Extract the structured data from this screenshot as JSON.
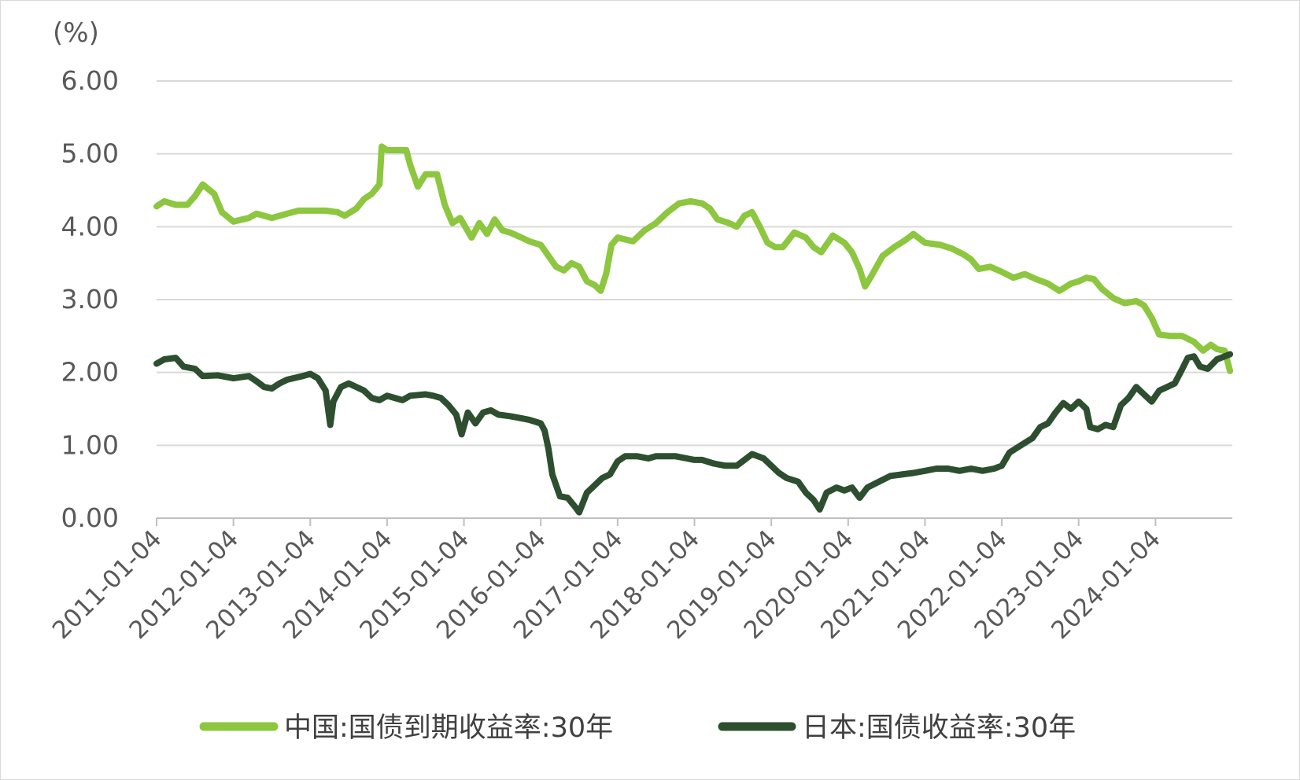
{
  "chart_data": {
    "type": "line",
    "title": "",
    "unit_label": "(%)",
    "xlabel": "",
    "ylabel": "",
    "ylim": [
      0,
      6
    ],
    "yticks": [
      "0.00",
      "1.00",
      "2.00",
      "3.00",
      "4.00",
      "5.00",
      "6.00"
    ],
    "xtick_labels": [
      "2011-01-04",
      "2012-01-04",
      "2013-01-04",
      "2014-01-04",
      "2015-01-04",
      "2016-01-04",
      "2017-01-04",
      "2018-01-04",
      "2019-01-04",
      "2020-01-04",
      "2021-01-04",
      "2022-01-04",
      "2023-01-04",
      "2024-01-04"
    ],
    "xlim": [
      2011.0,
      2025.0
    ],
    "grid": true,
    "legend_position": "bottom",
    "series": [
      {
        "name": "中国:国债到期收益率:30年",
        "color": "#8dc63f",
        "points": [
          [
            2011.0,
            4.28
          ],
          [
            2011.1,
            4.35
          ],
          [
            2011.25,
            4.3
          ],
          [
            2011.4,
            4.3
          ],
          [
            2011.5,
            4.42
          ],
          [
            2011.6,
            4.58
          ],
          [
            2011.75,
            4.45
          ],
          [
            2011.85,
            4.2
          ],
          [
            2012.0,
            4.07
          ],
          [
            2012.2,
            4.12
          ],
          [
            2012.3,
            4.18
          ],
          [
            2012.5,
            4.12
          ],
          [
            2012.7,
            4.18
          ],
          [
            2012.85,
            4.22
          ],
          [
            2013.0,
            4.22
          ],
          [
            2013.2,
            4.22
          ],
          [
            2013.35,
            4.2
          ],
          [
            2013.45,
            4.15
          ],
          [
            2013.6,
            4.25
          ],
          [
            2013.7,
            4.38
          ],
          [
            2013.8,
            4.45
          ],
          [
            2013.9,
            4.58
          ],
          [
            2013.93,
            5.1
          ],
          [
            2014.0,
            5.05
          ],
          [
            2014.15,
            5.05
          ],
          [
            2014.25,
            5.05
          ],
          [
            2014.3,
            4.85
          ],
          [
            2014.4,
            4.55
          ],
          [
            2014.5,
            4.72
          ],
          [
            2014.65,
            4.72
          ],
          [
            2014.75,
            4.3
          ],
          [
            2014.85,
            4.05
          ],
          [
            2014.95,
            4.12
          ],
          [
            2015.1,
            3.85
          ],
          [
            2015.2,
            4.05
          ],
          [
            2015.3,
            3.9
          ],
          [
            2015.4,
            4.1
          ],
          [
            2015.5,
            3.95
          ],
          [
            2015.6,
            3.92
          ],
          [
            2015.75,
            3.85
          ],
          [
            2015.85,
            3.8
          ],
          [
            2016.0,
            3.75
          ],
          [
            2016.1,
            3.6
          ],
          [
            2016.2,
            3.45
          ],
          [
            2016.3,
            3.4
          ],
          [
            2016.4,
            3.5
          ],
          [
            2016.5,
            3.45
          ],
          [
            2016.6,
            3.25
          ],
          [
            2016.7,
            3.2
          ],
          [
            2016.78,
            3.12
          ],
          [
            2016.85,
            3.35
          ],
          [
            2016.92,
            3.75
          ],
          [
            2017.0,
            3.85
          ],
          [
            2017.2,
            3.8
          ],
          [
            2017.35,
            3.95
          ],
          [
            2017.5,
            4.05
          ],
          [
            2017.65,
            4.2
          ],
          [
            2017.8,
            4.32
          ],
          [
            2017.95,
            4.35
          ],
          [
            2018.1,
            4.32
          ],
          [
            2018.2,
            4.25
          ],
          [
            2018.3,
            4.1
          ],
          [
            2018.45,
            4.05
          ],
          [
            2018.55,
            4.0
          ],
          [
            2018.65,
            4.15
          ],
          [
            2018.75,
            4.2
          ],
          [
            2018.85,
            4.0
          ],
          [
            2018.95,
            3.78
          ],
          [
            2019.05,
            3.72
          ],
          [
            2019.15,
            3.72
          ],
          [
            2019.3,
            3.92
          ],
          [
            2019.45,
            3.85
          ],
          [
            2019.55,
            3.72
          ],
          [
            2019.65,
            3.65
          ],
          [
            2019.8,
            3.88
          ],
          [
            2019.95,
            3.78
          ],
          [
            2020.05,
            3.65
          ],
          [
            2020.15,
            3.42
          ],
          [
            2020.22,
            3.18
          ],
          [
            2020.3,
            3.32
          ],
          [
            2020.45,
            3.6
          ],
          [
            2020.6,
            3.72
          ],
          [
            2020.75,
            3.82
          ],
          [
            2020.85,
            3.9
          ],
          [
            2021.0,
            3.78
          ],
          [
            2021.2,
            3.75
          ],
          [
            2021.35,
            3.7
          ],
          [
            2021.5,
            3.62
          ],
          [
            2021.6,
            3.55
          ],
          [
            2021.7,
            3.42
          ],
          [
            2021.85,
            3.45
          ],
          [
            2022.0,
            3.38
          ],
          [
            2022.15,
            3.3
          ],
          [
            2022.3,
            3.35
          ],
          [
            2022.45,
            3.28
          ],
          [
            2022.6,
            3.22
          ],
          [
            2022.75,
            3.12
          ],
          [
            2022.9,
            3.22
          ],
          [
            2023.0,
            3.25
          ],
          [
            2023.1,
            3.3
          ],
          [
            2023.2,
            3.28
          ],
          [
            2023.3,
            3.15
          ],
          [
            2023.45,
            3.02
          ],
          [
            2023.6,
            2.95
          ],
          [
            2023.75,
            2.98
          ],
          [
            2023.85,
            2.92
          ],
          [
            2023.95,
            2.75
          ],
          [
            2024.05,
            2.52
          ],
          [
            2024.2,
            2.5
          ],
          [
            2024.35,
            2.5
          ],
          [
            2024.5,
            2.42
          ],
          [
            2024.62,
            2.3
          ],
          [
            2024.72,
            2.38
          ],
          [
            2024.8,
            2.32
          ],
          [
            2024.9,
            2.3
          ],
          [
            2024.97,
            2.02
          ]
        ]
      },
      {
        "name": "日本:国债收益率:30年",
        "color": "#2d4f2f",
        "points": [
          [
            2011.0,
            2.12
          ],
          [
            2011.1,
            2.18
          ],
          [
            2011.25,
            2.2
          ],
          [
            2011.35,
            2.08
          ],
          [
            2011.5,
            2.05
          ],
          [
            2011.6,
            1.95
          ],
          [
            2011.8,
            1.96
          ],
          [
            2012.0,
            1.92
          ],
          [
            2012.2,
            1.95
          ],
          [
            2012.3,
            1.88
          ],
          [
            2012.4,
            1.8
          ],
          [
            2012.5,
            1.78
          ],
          [
            2012.6,
            1.85
          ],
          [
            2012.7,
            1.9
          ],
          [
            2012.9,
            1.95
          ],
          [
            2013.0,
            1.98
          ],
          [
            2013.1,
            1.92
          ],
          [
            2013.2,
            1.75
          ],
          [
            2013.26,
            1.28
          ],
          [
            2013.3,
            1.6
          ],
          [
            2013.4,
            1.8
          ],
          [
            2013.5,
            1.85
          ],
          [
            2013.6,
            1.8
          ],
          [
            2013.7,
            1.75
          ],
          [
            2013.8,
            1.65
          ],
          [
            2013.9,
            1.62
          ],
          [
            2014.0,
            1.68
          ],
          [
            2014.1,
            1.65
          ],
          [
            2014.2,
            1.62
          ],
          [
            2014.3,
            1.68
          ],
          [
            2014.5,
            1.7
          ],
          [
            2014.6,
            1.68
          ],
          [
            2014.7,
            1.65
          ],
          [
            2014.8,
            1.55
          ],
          [
            2014.9,
            1.42
          ],
          [
            2014.97,
            1.15
          ],
          [
            2015.05,
            1.45
          ],
          [
            2015.15,
            1.3
          ],
          [
            2015.25,
            1.45
          ],
          [
            2015.35,
            1.48
          ],
          [
            2015.45,
            1.42
          ],
          [
            2015.6,
            1.4
          ],
          [
            2015.7,
            1.38
          ],
          [
            2015.85,
            1.35
          ],
          [
            2016.0,
            1.3
          ],
          [
            2016.05,
            1.2
          ],
          [
            2016.1,
            0.95
          ],
          [
            2016.15,
            0.6
          ],
          [
            2016.25,
            0.3
          ],
          [
            2016.35,
            0.28
          ],
          [
            2016.45,
            0.15
          ],
          [
            2016.5,
            0.08
          ],
          [
            2016.6,
            0.35
          ],
          [
            2016.7,
            0.45
          ],
          [
            2016.8,
            0.55
          ],
          [
            2016.9,
            0.6
          ],
          [
            2017.0,
            0.78
          ],
          [
            2017.1,
            0.85
          ],
          [
            2017.25,
            0.85
          ],
          [
            2017.4,
            0.82
          ],
          [
            2017.5,
            0.85
          ],
          [
            2017.6,
            0.85
          ],
          [
            2017.75,
            0.85
          ],
          [
            2017.9,
            0.82
          ],
          [
            2018.0,
            0.8
          ],
          [
            2018.1,
            0.8
          ],
          [
            2018.25,
            0.75
          ],
          [
            2018.4,
            0.72
          ],
          [
            2018.55,
            0.72
          ],
          [
            2018.65,
            0.8
          ],
          [
            2018.75,
            0.88
          ],
          [
            2018.9,
            0.82
          ],
          [
            2019.0,
            0.72
          ],
          [
            2019.1,
            0.62
          ],
          [
            2019.2,
            0.55
          ],
          [
            2019.35,
            0.5
          ],
          [
            2019.45,
            0.35
          ],
          [
            2019.55,
            0.25
          ],
          [
            2019.63,
            0.12
          ],
          [
            2019.72,
            0.35
          ],
          [
            2019.85,
            0.42
          ],
          [
            2019.95,
            0.38
          ],
          [
            2020.05,
            0.42
          ],
          [
            2020.15,
            0.28
          ],
          [
            2020.25,
            0.42
          ],
          [
            2020.4,
            0.5
          ],
          [
            2020.55,
            0.58
          ],
          [
            2020.7,
            0.6
          ],
          [
            2020.85,
            0.62
          ],
          [
            2021.0,
            0.65
          ],
          [
            2021.15,
            0.68
          ],
          [
            2021.3,
            0.68
          ],
          [
            2021.45,
            0.65
          ],
          [
            2021.6,
            0.68
          ],
          [
            2021.75,
            0.65
          ],
          [
            2021.9,
            0.68
          ],
          [
            2022.0,
            0.72
          ],
          [
            2022.1,
            0.9
          ],
          [
            2022.25,
            1.0
          ],
          [
            2022.4,
            1.1
          ],
          [
            2022.5,
            1.25
          ],
          [
            2022.6,
            1.3
          ],
          [
            2022.7,
            1.45
          ],
          [
            2022.8,
            1.58
          ],
          [
            2022.9,
            1.5
          ],
          [
            2023.0,
            1.6
          ],
          [
            2023.1,
            1.5
          ],
          [
            2023.15,
            1.25
          ],
          [
            2023.25,
            1.22
          ],
          [
            2023.35,
            1.28
          ],
          [
            2023.45,
            1.25
          ],
          [
            2023.55,
            1.55
          ],
          [
            2023.65,
            1.65
          ],
          [
            2023.75,
            1.8
          ],
          [
            2023.85,
            1.7
          ],
          [
            2023.95,
            1.6
          ],
          [
            2024.05,
            1.75
          ],
          [
            2024.15,
            1.8
          ],
          [
            2024.25,
            1.85
          ],
          [
            2024.35,
            2.05
          ],
          [
            2024.42,
            2.2
          ],
          [
            2024.5,
            2.22
          ],
          [
            2024.58,
            2.08
          ],
          [
            2024.68,
            2.05
          ],
          [
            2024.8,
            2.18
          ],
          [
            2024.9,
            2.22
          ],
          [
            2024.97,
            2.25
          ]
        ]
      }
    ]
  }
}
